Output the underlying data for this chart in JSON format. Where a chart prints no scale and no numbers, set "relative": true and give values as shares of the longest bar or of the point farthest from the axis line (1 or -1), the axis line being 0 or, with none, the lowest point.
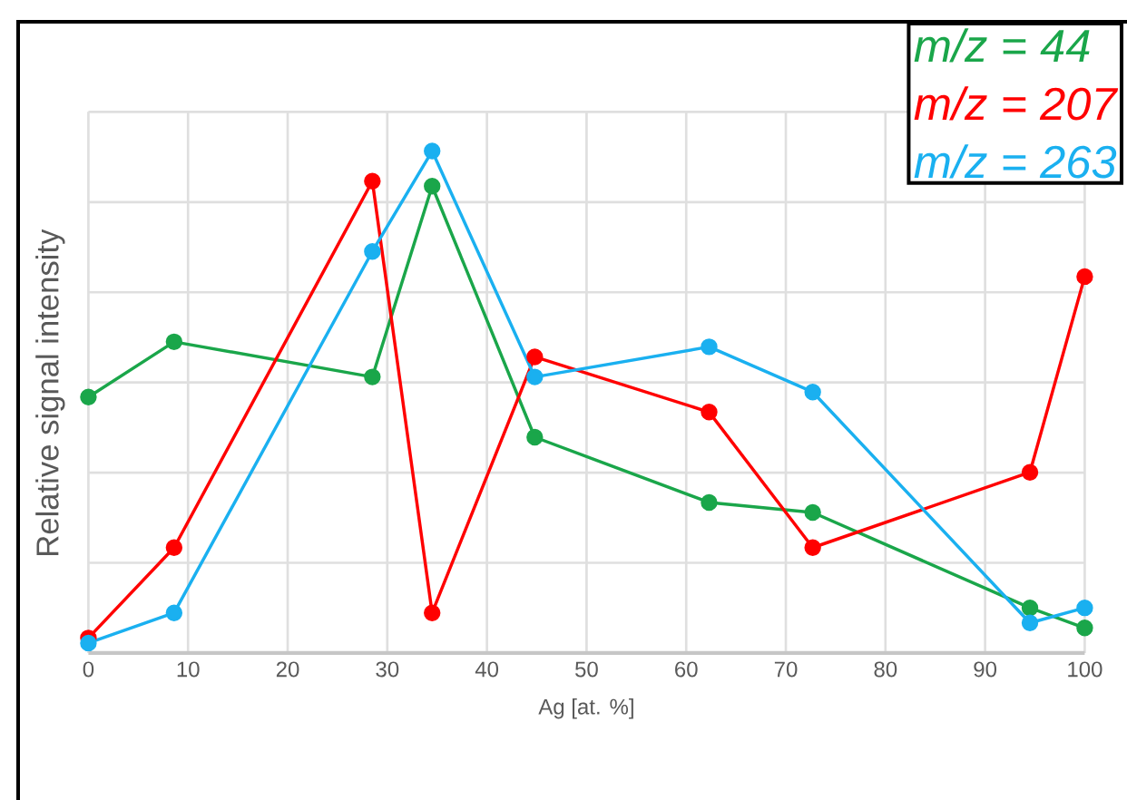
{
  "chart_data": {
    "type": "line",
    "relative": true,
    "xlabel": "Ag [at. %]",
    "ylabel": "Relative signal intensity",
    "xlim": [
      0,
      100
    ],
    "xticks": [
      0,
      10,
      20,
      30,
      40,
      50,
      60,
      70,
      80,
      90,
      100
    ],
    "grid": true,
    "legend": "top right",
    "marker": "circle",
    "line_style": "solid",
    "x": [
      0,
      8.6,
      28.5,
      34.5,
      44.8,
      62.3,
      72.7,
      94.5,
      100
    ],
    "series": [
      {
        "name": "m/z = 44",
        "color": "#1aa64a",
        "values": [
          0.51,
          0.62,
          0.55,
          0.93,
          0.43,
          0.3,
          0.28,
          0.09,
          0.05
        ]
      },
      {
        "name": "m/z = 207",
        "color": "#ff0000",
        "values": [
          0.03,
          0.21,
          0.94,
          0.08,
          0.59,
          0.48,
          0.21,
          0.36,
          0.75
        ]
      },
      {
        "name": "m/z = 263",
        "color": "#1ab0f0",
        "values": [
          0.02,
          0.08,
          0.8,
          1.0,
          0.55,
          0.61,
          0.52,
          0.06,
          0.09
        ]
      }
    ]
  }
}
